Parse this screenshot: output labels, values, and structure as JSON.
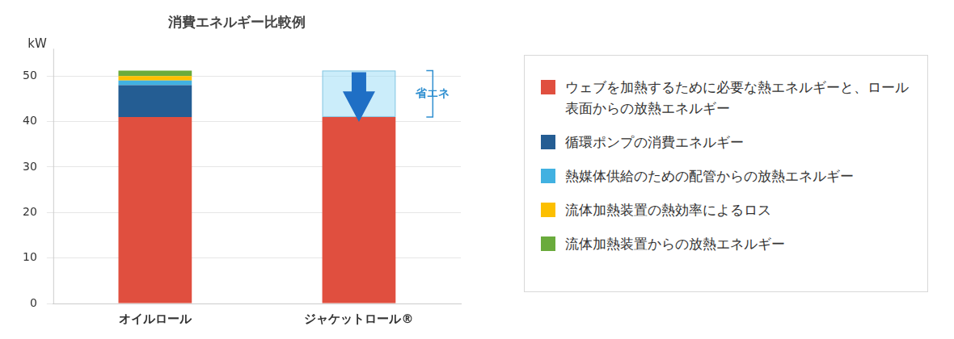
{
  "chart_data": {
    "type": "bar",
    "title": "消費エネルギー比較例",
    "ylabel": "kW",
    "categories": [
      "オイルロール",
      "ジャケットロール®"
    ],
    "series": [
      {
        "name": "ウェブを加熱するために必要な熱エネルギーと、ロール表面からの放熱エネルギー",
        "color": "#e04f3f",
        "values": [
          41,
          41
        ]
      },
      {
        "name": "循環ポンプの消費エネルギー",
        "color": "#245d93",
        "values": [
          7,
          0
        ]
      },
      {
        "name": "熱媒体供給のための配管からの放熱エネルギー",
        "color": "#41b1e1",
        "values": [
          1,
          0
        ]
      },
      {
        "name": "流体加熱装置の熱効率によるロス",
        "color": "#fcbf00",
        "values": [
          1,
          0
        ]
      },
      {
        "name": "流体加熱装置からの放熱エネルギー",
        "color": "#6aab3c",
        "values": [
          1.2,
          0
        ]
      }
    ],
    "stacked": true,
    "ylim": [
      0,
      56
    ],
    "yticks": [
      0,
      10,
      20,
      30,
      40,
      50
    ],
    "grid": true,
    "legend": "right",
    "annotations": [
      {
        "text": "省エネ"
      }
    ]
  }
}
